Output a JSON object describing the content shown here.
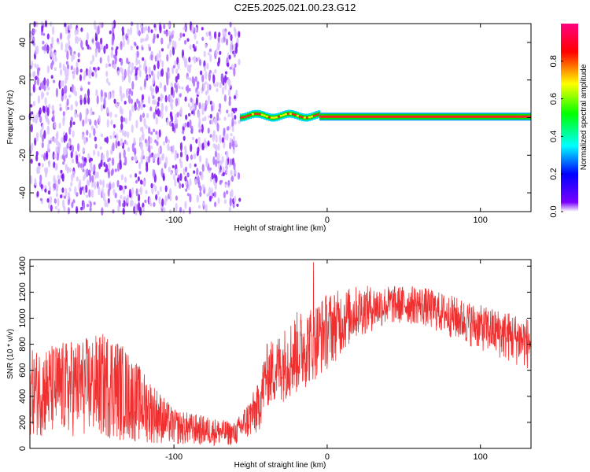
{
  "title": "C2E5.2025.021.00.23.G12",
  "chart_data": [
    {
      "type": "heatmap",
      "title": "C2E5.2025.021.00.23.G12",
      "xlabel": "Height of straight line (km)",
      "ylabel": "Frequency (Hz)",
      "colorbar_label": "Normalized spectral amplitude",
      "xlim": [
        -194,
        133
      ],
      "ylim": [
        -50,
        50
      ],
      "x_ticks": [
        -100,
        0,
        100
      ],
      "y_ticks": [
        -40,
        -20,
        0,
        20,
        40
      ],
      "colorbar_ticks": [
        0.0,
        0.2,
        0.4,
        0.6,
        0.8
      ],
      "colorbar_range": [
        0,
        1
      ],
      "colormap": [
        "#ffffff",
        "#7a00ff",
        "#0000ff",
        "#00ffff",
        "#00ff00",
        "#ffff00",
        "#ff0000",
        "#ff0080"
      ],
      "noise_region_x": [
        -194,
        -57
      ],
      "noise_level": 0.15,
      "signal_segments": [
        {
          "x": [
            -57,
            -5
          ],
          "freq": 1,
          "amplitude": 0.75,
          "note": "wavy"
        },
        {
          "x": [
            -5,
            133
          ],
          "freq": 0.5,
          "amplitude": 0.9
        }
      ]
    },
    {
      "type": "line",
      "xlabel": "Height of straight line (km)",
      "ylabel": "SNR (10 * v/v)",
      "xlim": [
        -194,
        133
      ],
      "ylim": [
        0,
        1450
      ],
      "x_ticks": [
        -100,
        0,
        100
      ],
      "y_ticks": [
        0,
        200,
        400,
        600,
        800,
        1000,
        1200,
        1400
      ],
      "color": "#ee3030",
      "envelope": {
        "x": [
          -194,
          -180,
          -160,
          -140,
          -120,
          -100,
          -80,
          -60,
          -45,
          -40,
          -30,
          -20,
          -10,
          0,
          20,
          40,
          60,
          80,
          100,
          120,
          133
        ],
        "low": [
          100,
          80,
          90,
          60,
          40,
          25,
          20,
          20,
          100,
          300,
          350,
          400,
          500,
          600,
          850,
          950,
          950,
          850,
          750,
          650,
          600
        ],
        "high": [
          750,
          800,
          850,
          900,
          600,
          300,
          250,
          200,
          500,
          800,
          900,
          1050,
          1100,
          1200,
          1250,
          1250,
          1250,
          1180,
          1100,
          1050,
          1000
        ]
      },
      "spikes": [
        {
          "x": -9,
          "y": 1430
        }
      ]
    }
  ]
}
